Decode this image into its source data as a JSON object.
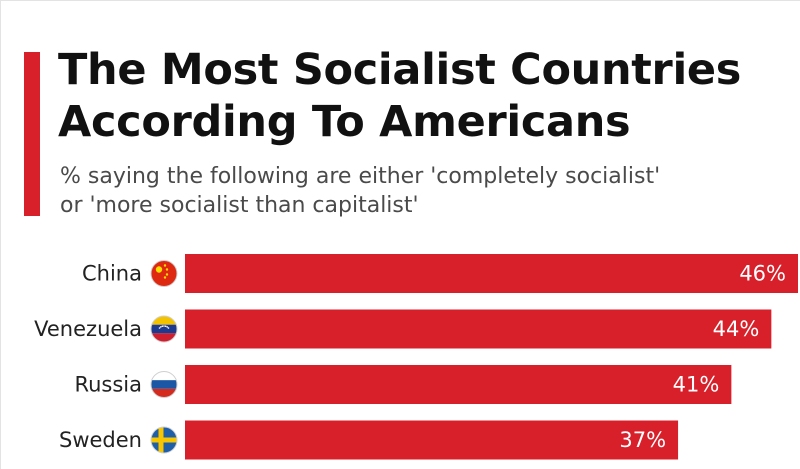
{
  "header": {
    "title_line1": "The Most Socialist Countries",
    "title_line2": "According To Americans",
    "subtitle_line1": "% saying the following are either 'completely socialist'",
    "subtitle_line2": "or 'more socialist than capitalist'"
  },
  "colors": {
    "accent": "#d8202b",
    "bar": "#d8202b"
  },
  "chart_data": {
    "type": "bar",
    "orientation": "horizontal",
    "title": "The Most Socialist Countries According To Americans",
    "subtitle": "% saying the following are either 'completely socialist' or 'more socialist than capitalist'",
    "categories": [
      "China",
      "Venezuela",
      "Russia",
      "Sweden"
    ],
    "values": [
      46,
      44,
      41,
      37
    ],
    "value_labels": [
      "46%",
      "44%",
      "41%",
      "37%"
    ],
    "flag_icons": [
      "china-flag-icon",
      "venezuela-flag-icon",
      "russia-flag-icon",
      "sweden-flag-icon"
    ],
    "xlim": [
      0,
      46
    ],
    "grid": false,
    "legend": "none"
  }
}
